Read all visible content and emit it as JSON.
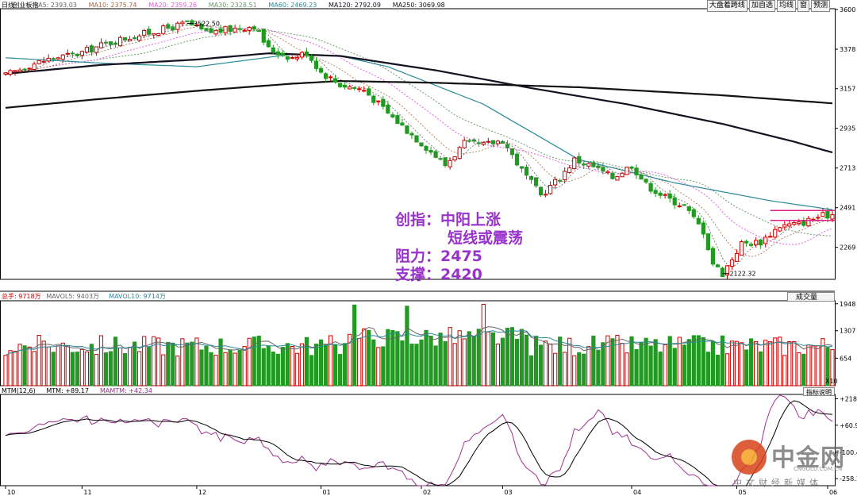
{
  "colors": {
    "up": "#d00000",
    "down": "#229922",
    "ma5": "#666666",
    "ma10": "#aa6644",
    "ma20": "#e060e0",
    "ma30": "#6a9a6a",
    "ma60": "#2a8a9a",
    "ma120": "#111122",
    "ma250": "#111111",
    "annotation": "#9932cc",
    "mtm": "#000000",
    "mamtm": "#a03090"
  },
  "header": {
    "items": [
      {
        "text": "日线",
        "color": "#000000"
      },
      {
        "text": "创业板指",
        "color": "#000000"
      },
      {
        "text": "MA5: 2393.03",
        "color": "#666666"
      },
      {
        "text": "MA10: 2375.74",
        "color": "#aa6644"
      },
      {
        "text": "MA20: 2359.26",
        "color": "#e060e0"
      },
      {
        "text": "MA30: 2328.51",
        "color": "#6a9a6a"
      },
      {
        "text": "MA60: 2469.23",
        "color": "#2a8a9a"
      },
      {
        "text": "MA120: 2792.09",
        "color": "#111122"
      },
      {
        "text": "MA250: 3069.98",
        "color": "#111111"
      }
    ],
    "buttons": [
      "大盘着跨线",
      "加自选",
      "均线",
      "窗",
      "预测"
    ]
  },
  "volume_header": [
    {
      "text": "总手: 9718万",
      "color": "#d00000"
    },
    {
      "text": "MAVOL5: 9403万",
      "color": "#666666"
    },
    {
      "text": "MAVOL10: 9714万",
      "color": "#2a8a9a"
    }
  ],
  "volume_button": "成交量",
  "volume_unit": "X10",
  "mtm_header": [
    {
      "text": "MTM(12,6)",
      "color": "#000000"
    },
    {
      "text": "MTM: +89.17",
      "color": "#000000"
    },
    {
      "text": "MAMTM: +42.34",
      "color": "#a03090"
    }
  ],
  "indicator_button": "指标说明",
  "annotation": {
    "line1": "创指：中阳上涨",
    "line2": "短线或震荡",
    "line3": "阻力：2475",
    "line4": "支撑：2420"
  },
  "logo": {
    "cn": "中金网",
    "url": "CNGOLD.COM.CN",
    "sub": "中文财经新媒体"
  },
  "chart_data": {
    "type": "candlestick",
    "price_axis": {
      "ticks": [
        3600,
        3378,
        3157,
        2935,
        2713,
        2491,
        2269
      ],
      "ylim": [
        2090,
        3600
      ]
    },
    "volume_axis": {
      "ticks": [
        1948,
        1307,
        654
      ],
      "ylim": [
        0,
        2000
      ]
    },
    "mtm_axis": {
      "ticks": [
        218.6,
        60.92,
        -100.4,
        -258.1
      ],
      "labels": [
        "+218.6",
        "+60.92",
        "-100.4",
        "-258.1"
      ],
      "ylim": [
        -300,
        240
      ]
    },
    "x_labels": [
      {
        "label": "10",
        "index": 0
      },
      {
        "label": "11",
        "index": 16
      },
      {
        "label": "12",
        "index": 40
      },
      {
        "label": "01",
        "index": 66
      },
      {
        "label": "02",
        "index": 87
      },
      {
        "label": "03",
        "index": 104
      },
      {
        "label": "04",
        "index": 131
      },
      {
        "label": "05",
        "index": 153
      },
      {
        "label": "06",
        "index": 172
      }
    ],
    "n_bars": 174,
    "price_keypoints": [
      [
        0,
        3230
      ],
      [
        5,
        3290
      ],
      [
        10,
        3330
      ],
      [
        15,
        3350
      ],
      [
        20,
        3400
      ],
      [
        25,
        3440
      ],
      [
        30,
        3470
      ],
      [
        38,
        3522.5
      ],
      [
        42,
        3470
      ],
      [
        47,
        3490
      ],
      [
        52,
        3510
      ],
      [
        55,
        3380
      ],
      [
        60,
        3330
      ],
      [
        63,
        3360
      ],
      [
        66,
        3250
      ],
      [
        70,
        3180
      ],
      [
        75,
        3150
      ],
      [
        80,
        3020
      ],
      [
        85,
        2900
      ],
      [
        88,
        2830
      ],
      [
        92,
        2730
      ],
      [
        96,
        2850
      ],
      [
        100,
        2840
      ],
      [
        104,
        2870
      ],
      [
        108,
        2700
      ],
      [
        112,
        2560
      ],
      [
        116,
        2660
      ],
      [
        119,
        2760
      ],
      [
        123,
        2720
      ],
      [
        127,
        2660
      ],
      [
        131,
        2730
      ],
      [
        134,
        2620
      ],
      [
        138,
        2550
      ],
      [
        142,
        2500
      ],
      [
        146,
        2360
      ],
      [
        148,
        2180
      ],
      [
        150,
        2122.32
      ],
      [
        154,
        2290
      ],
      [
        158,
        2300
      ],
      [
        162,
        2390
      ],
      [
        166,
        2400
      ],
      [
        170,
        2440
      ],
      [
        173,
        2455
      ]
    ],
    "annotations": [
      {
        "text": "3522.50",
        "value": 3522.5
      },
      {
        "text": "2122.32",
        "value": 2122.32
      }
    ],
    "moving_averages": [
      {
        "name": "MA60",
        "color": "#2a8a9a",
        "points": [
          [
            0,
            3330
          ],
          [
            20,
            3300
          ],
          [
            40,
            3280
          ],
          [
            60,
            3350
          ],
          [
            70,
            3340
          ],
          [
            80,
            3280
          ],
          [
            100,
            3070
          ],
          [
            120,
            2760
          ],
          [
            140,
            2630
          ],
          [
            160,
            2530
          ],
          [
            173,
            2480
          ]
        ]
      },
      {
        "name": "MA120",
        "color": "#111122",
        "points": [
          [
            0,
            3240
          ],
          [
            20,
            3290
          ],
          [
            40,
            3320
          ],
          [
            55,
            3355
          ],
          [
            70,
            3340
          ],
          [
            90,
            3260
          ],
          [
            110,
            3160
          ],
          [
            130,
            3070
          ],
          [
            150,
            2960
          ],
          [
            165,
            2860
          ],
          [
            173,
            2800
          ]
        ]
      },
      {
        "name": "MA250",
        "color": "#111111",
        "points": [
          [
            0,
            3050
          ],
          [
            20,
            3100
          ],
          [
            40,
            3145
          ],
          [
            60,
            3185
          ],
          [
            70,
            3200
          ],
          [
            90,
            3190
          ],
          [
            120,
            3165
          ],
          [
            150,
            3120
          ],
          [
            173,
            3075
          ]
        ]
      }
    ],
    "resistance": 2475,
    "support": 2420
  }
}
